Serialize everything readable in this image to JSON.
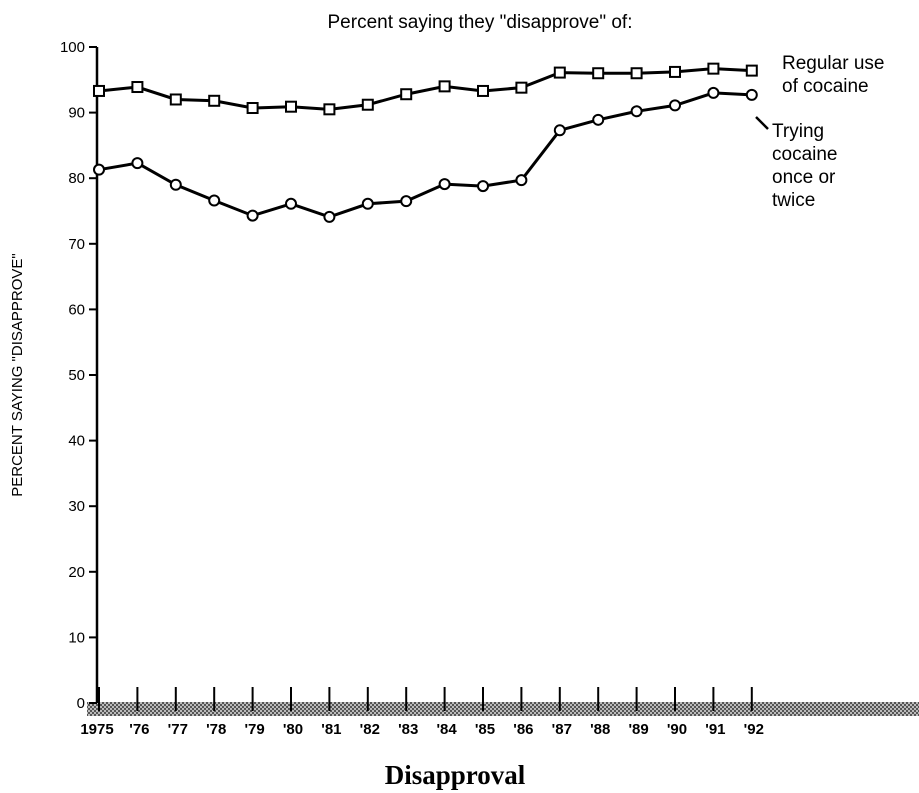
{
  "chart_data": {
    "type": "line",
    "title": "Percent saying they \"disapprove\" of:",
    "y_label": "PERCENT SAYING \"DISAPPROVE\"",
    "caption": "Disapproval",
    "categories": [
      "1975",
      "'76",
      "'77",
      "'78",
      "'79",
      "'80",
      "'81",
      "'82",
      "'83",
      "'84",
      "'85",
      "'86",
      "'87",
      "'88",
      "'89",
      "'90",
      "'91",
      "'92"
    ],
    "series": [
      {
        "name": "Regular use of cocaine",
        "color": "#000000",
        "marker": "square",
        "values": [
          93.3,
          93.9,
          92.0,
          91.8,
          90.7,
          90.9,
          90.5,
          91.2,
          92.8,
          94.0,
          93.3,
          93.8,
          96.1,
          96.0,
          96.0,
          96.2,
          96.7,
          96.4
        ]
      },
      {
        "name": "Trying cocaine once or twice",
        "color": "#000000",
        "marker": "circle",
        "values": [
          81.3,
          82.3,
          79.0,
          76.6,
          74.3,
          76.1,
          74.1,
          76.1,
          76.5,
          79.1,
          78.8,
          79.7,
          87.3,
          88.9,
          90.2,
          91.1,
          93.0,
          92.7
        ]
      }
    ],
    "ylim": [
      0,
      100
    ],
    "yticks": [
      0,
      10,
      20,
      30,
      40,
      50,
      60,
      70,
      80,
      90,
      100
    ]
  }
}
